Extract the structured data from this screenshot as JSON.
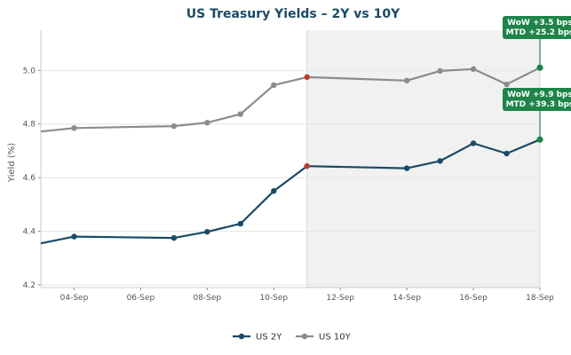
{
  "chart_data": {
    "type": "line",
    "title": "US Treasury Yields – 2Y vs 10Y",
    "xlabel": "",
    "ylabel": "Yield (%)",
    "x": [
      "2023-09-03",
      "2023-09-04",
      "2023-09-07",
      "2023-09-08",
      "2023-09-09",
      "2023-09-10",
      "2023-09-11",
      "2023-09-14",
      "2023-09-15",
      "2023-09-16",
      "2023-09-17",
      "2023-09-18"
    ],
    "xlim": [
      "2023-09-03",
      "2023-09-18"
    ],
    "x_ticks": [
      "04-Sep",
      "06-Sep",
      "08-Sep",
      "10-Sep",
      "12-Sep",
      "14-Sep",
      "16-Sep",
      "18-Sep"
    ],
    "ylim": [
      4.19,
      5.15
    ],
    "y_ticks": [
      "4.2",
      "4.4",
      "4.6",
      "4.8",
      "5.0"
    ],
    "shaded_region": [
      "2023-09-11",
      "2023-09-18"
    ],
    "grid": true,
    "legend_position": "bottom-center",
    "series": [
      {
        "name": "US 2Y",
        "color": "#1b4a66",
        "values": [
          4.355,
          4.38,
          4.375,
          4.398,
          4.428,
          4.55,
          4.643,
          4.635,
          4.662,
          4.728,
          4.69,
          4.742
        ]
      },
      {
        "name": "US 10Y",
        "color": "#8c8c8c",
        "values": [
          4.772,
          4.785,
          4.792,
          4.805,
          4.837,
          4.945,
          4.975,
          4.962,
          4.998,
          5.005,
          4.948,
          5.01
        ]
      }
    ],
    "highlight_index": 6,
    "highlight_color": "#c0392b",
    "annotations": [
      {
        "series": "US 10Y",
        "lines": [
          "WoW +3.5 bps",
          "MTD +25.2 bps"
        ]
      },
      {
        "series": "US 2Y",
        "lines": [
          "WoW +9.9 bps",
          "MTD +39.3 bps"
        ]
      }
    ],
    "annotation_color": "#1e8449"
  }
}
